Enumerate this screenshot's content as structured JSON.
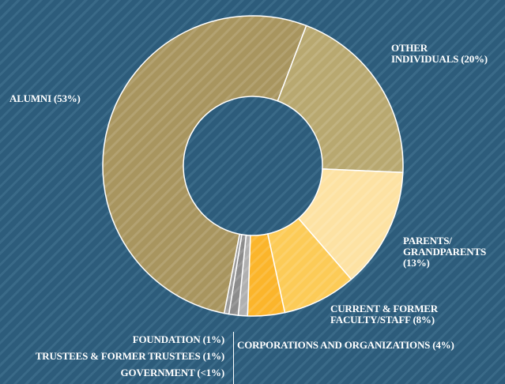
{
  "chart_data": {
    "type": "donut",
    "categories": [
      "ALUMNI",
      "OTHER INDIVIDUALS",
      "PARENTS/ GRANDPARENTS",
      "CURRENT & FORMER FACULTY/STAFF",
      "CORPORATIONS AND ORGANIZATIONS",
      "FOUNDATION",
      "TRUSTEES & FORMER TRUSTEES",
      "GOVERNMENT"
    ],
    "values": [
      53,
      20,
      13,
      8,
      4,
      1,
      1,
      0.5
    ],
    "value_labels": [
      "(53%)",
      "(20%)",
      "(13%)",
      "(8%)",
      "(4%)",
      "(1%)",
      "(1%)",
      "(<1%)"
    ],
    "colors": [
      "#a8955f",
      "#b8a870",
      "#fde2a3",
      "#fccb57",
      "#fbb52b",
      "#b0b0b0",
      "#8c8c8c",
      "#9a9a9a"
    ]
  }
}
